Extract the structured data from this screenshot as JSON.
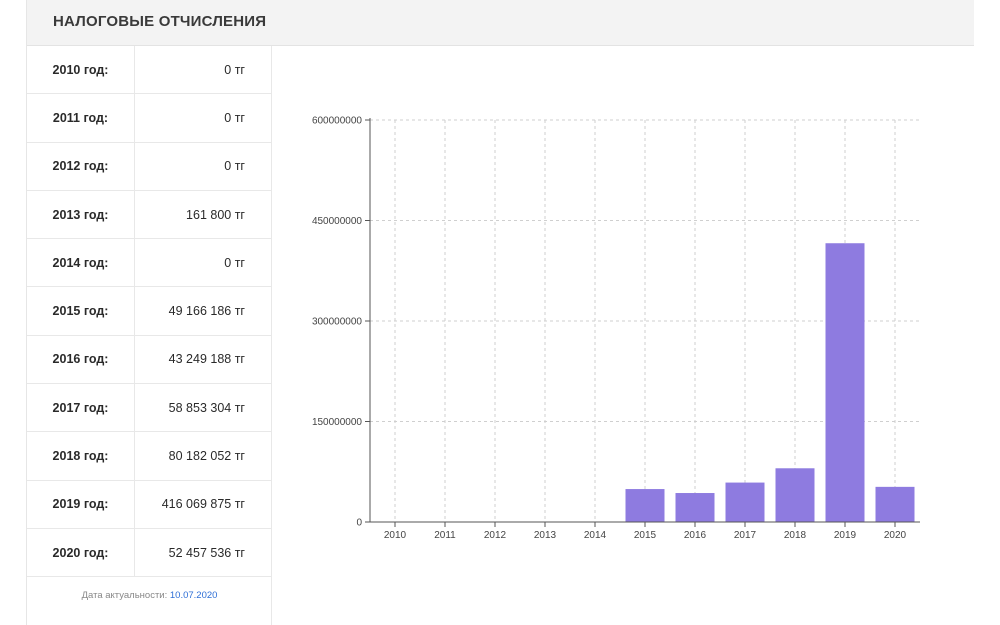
{
  "header": {
    "title": "НАЛОГОВЫЕ ОТЧИСЛЕНИЯ"
  },
  "table": {
    "rows": [
      {
        "year": "2010 год:",
        "value": "0 тг"
      },
      {
        "year": "2011 год:",
        "value": "0 тг"
      },
      {
        "year": "2012 год:",
        "value": "0 тг"
      },
      {
        "year": "2013 год:",
        "value": "161 800 тг"
      },
      {
        "year": "2014 год:",
        "value": "0 тг"
      },
      {
        "year": "2015 год:",
        "value": "49 166 186 тг"
      },
      {
        "year": "2016 год:",
        "value": "43 249 188 тг"
      },
      {
        "year": "2017 год:",
        "value": "58 853 304 тг"
      },
      {
        "year": "2018 год:",
        "value": "80 182 052 тг"
      },
      {
        "year": "2019 год:",
        "value": "416 069 875 тг"
      },
      {
        "year": "2020 год:",
        "value": "52 457 536 тг"
      }
    ]
  },
  "footer": {
    "label": "Дата актуальности:",
    "date": "10.07.2020"
  },
  "colors": {
    "bar": "#8e7be0",
    "grid": "#cfcfcf",
    "axis": "#555555"
  },
  "chart_data": {
    "type": "bar",
    "categories": [
      "2010",
      "2011",
      "2012",
      "2013",
      "2014",
      "2015",
      "2016",
      "2017",
      "2018",
      "2019",
      "2020"
    ],
    "values": [
      0,
      0,
      0,
      161800,
      0,
      49166186,
      43249188,
      58853304,
      80182052,
      416069875,
      52457536
    ],
    "ylim": [
      0,
      600000000
    ],
    "yticks": [
      0,
      150000000,
      300000000,
      450000000,
      600000000
    ],
    "ytick_labels": [
      "0",
      "150000000",
      "300000000",
      "450000000",
      "600000000"
    ],
    "grid": true,
    "title": "",
    "xlabel": "",
    "ylabel": ""
  }
}
